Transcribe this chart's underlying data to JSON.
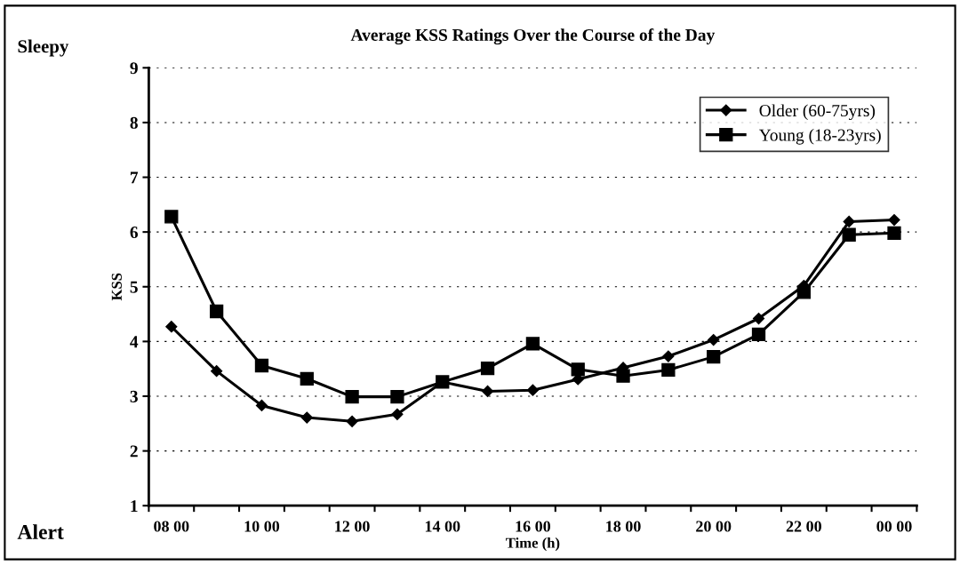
{
  "chart_data": {
    "type": "line",
    "title": "Average KSS Ratings Over the Course of the Day",
    "xlabel": "Time (h)",
    "ylabel": "KSS",
    "categories": [
      "08 00",
      null,
      "10 00",
      null,
      "12 00",
      null,
      "14 00",
      null,
      "16 00",
      null,
      "18 00",
      null,
      "20 00",
      null,
      "22 00",
      null,
      "00 00"
    ],
    "series": [
      {
        "name": "Older (60-75yrs)",
        "color": "#000000",
        "marker": "diamond",
        "values": [
          4.27,
          3.46,
          2.83,
          2.61,
          2.54,
          2.67,
          3.26,
          3.09,
          3.11,
          3.31,
          3.52,
          3.73,
          4.03,
          4.42,
          5.02,
          6.19,
          6.22
        ]
      },
      {
        "name": "Young (18-23yrs)",
        "color": "#000000",
        "marker": "square",
        "values": [
          6.28,
          4.55,
          3.56,
          3.32,
          2.99,
          2.99,
          3.26,
          3.51,
          3.96,
          3.49,
          3.37,
          3.48,
          3.72,
          4.13,
          4.9,
          5.95,
          5.98
        ]
      }
    ],
    "ylim": [
      1,
      9
    ],
    "yticks": [
      1,
      2,
      3,
      4,
      5,
      6,
      7,
      8,
      9
    ],
    "grid": "y",
    "legend": "top right",
    "line_style": "solid",
    "annotations": [
      "Sleepy",
      "Alert"
    ]
  }
}
